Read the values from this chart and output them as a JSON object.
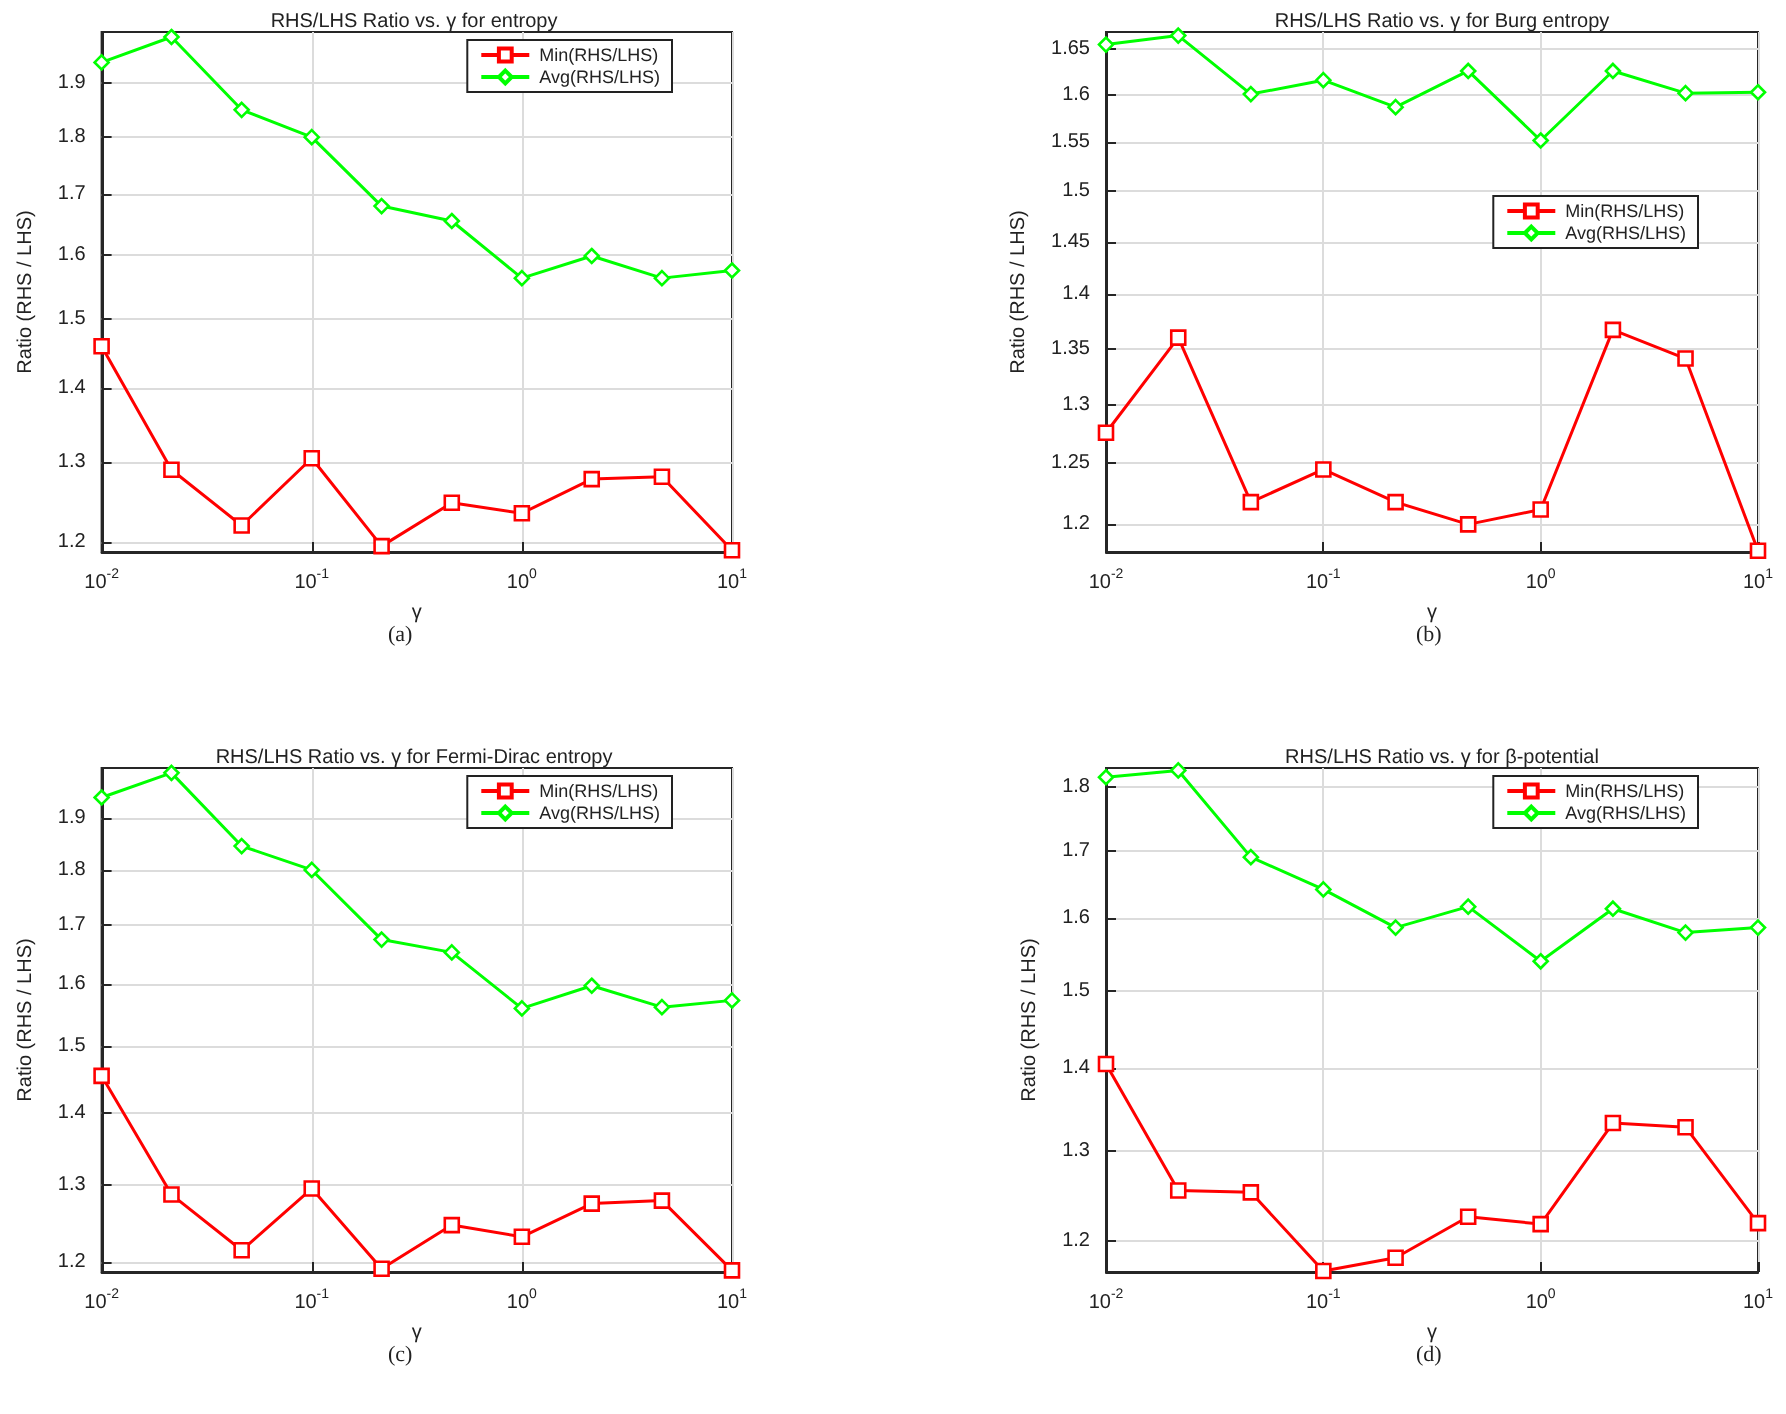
{
  "chart_data": [
    {
      "type": "line",
      "title": "RHS/LHS Ratio vs. γ for entropy",
      "xlabel": "γ",
      "ylabel": "Ratio (RHS / LHS)",
      "annotations": [
        "(a)"
      ],
      "log": "xy",
      "grid": true,
      "legend": "top right",
      "x": [
        0.01,
        0.0215,
        0.0464,
        0.1,
        0.215,
        0.464,
        1,
        2.15,
        4.64,
        10
      ],
      "xlim": [
        0.01,
        10
      ],
      "xticks": [
        {
          "value": 0.01,
          "label": "10$^{-2}$"
        },
        {
          "value": 0.1,
          "label": "10$^{-1}$"
        },
        {
          "value": 1,
          "label": "10$^{0}$"
        },
        {
          "value": 10,
          "label": "10$^{1}$"
        }
      ],
      "ylim": [
        1.188,
        2.0
      ],
      "yticks": [
        1.2,
        1.3,
        1.4,
        1.5,
        1.6,
        1.7,
        1.8,
        1.9
      ],
      "series": [
        {
          "name": "Min(RHS/LHS)",
          "color": "#ff0000",
          "marker": "square",
          "values": [
            1.46,
            1.29,
            1.22,
            1.305,
            1.195,
            1.248,
            1.235,
            1.278,
            1.281,
            1.19
          ]
        },
        {
          "name": "Avg(RHS/LHS)",
          "color": "#00ff00",
          "marker": "diamond",
          "values": [
            1.94,
            1.99,
            1.85,
            1.8,
            1.68,
            1.655,
            1.563,
            1.598,
            1.563,
            1.575
          ]
        }
      ]
    },
    {
      "type": "line",
      "title": "RHS/LHS Ratio vs. γ for Burg entropy",
      "xlabel": "γ",
      "ylabel": "Ratio (RHS / LHS)",
      "annotations": [
        "(b)"
      ],
      "log": "xy",
      "grid": true,
      "legend": "right",
      "x": [
        0.01,
        0.0215,
        0.0464,
        0.1,
        0.215,
        0.464,
        1,
        2.15,
        4.64,
        10
      ],
      "xlim": [
        0.01,
        10
      ],
      "xticks": [
        {
          "value": 0.01,
          "label": "10$^{-2}$"
        },
        {
          "value": 0.1,
          "label": "10$^{-1}$"
        },
        {
          "value": 1,
          "label": "10$^{0}$"
        },
        {
          "value": 10,
          "label": "10$^{1}$"
        }
      ],
      "ylim": [
        1.178,
        1.669
      ],
      "yticks": [
        1.2,
        1.25,
        1.3,
        1.35,
        1.4,
        1.45,
        1.5,
        1.55,
        1.6,
        1.65
      ],
      "series": [
        {
          "name": "Min(RHS/LHS)",
          "color": "#ff0000",
          "marker": "square",
          "values": [
            1.276,
            1.36,
            1.218,
            1.245,
            1.218,
            1.2,
            1.212,
            1.367,
            1.341,
            1.179
          ]
        },
        {
          "name": "Avg(RHS/LHS)",
          "color": "#00ff00",
          "marker": "diamond",
          "values": [
            1.655,
            1.665,
            1.601,
            1.616,
            1.587,
            1.626,
            1.552,
            1.626,
            1.602,
            1.603
          ]
        }
      ]
    },
    {
      "type": "line",
      "title": "RHS/LHS Ratio vs. γ for Fermi-Dirac entropy",
      "xlabel": "γ",
      "ylabel": "Ratio (RHS / LHS)",
      "annotations": [
        "(c)"
      ],
      "log": "xy",
      "grid": true,
      "legend": "top right",
      "x": [
        0.01,
        0.0215,
        0.0464,
        0.1,
        0.215,
        0.464,
        1,
        2.15,
        4.64,
        10
      ],
      "xlim": [
        0.01,
        10
      ],
      "xticks": [
        {
          "value": 0.01,
          "label": "10$^{-2}$"
        },
        {
          "value": 0.1,
          "label": "10$^{-1}$"
        },
        {
          "value": 1,
          "label": "10$^{0}$"
        },
        {
          "value": 10,
          "label": "10$^{1}$"
        }
      ],
      "ylim": [
        1.188,
        2.0
      ],
      "yticks": [
        1.2,
        1.3,
        1.4,
        1.5,
        1.6,
        1.7,
        1.8,
        1.9
      ],
      "series": [
        {
          "name": "Min(RHS/LHS)",
          "color": "#ff0000",
          "marker": "square",
          "values": [
            1.455,
            1.287,
            1.215,
            1.295,
            1.192,
            1.247,
            1.232,
            1.275,
            1.279,
            1.19
          ]
        },
        {
          "name": "Avg(RHS/LHS)",
          "color": "#00ff00",
          "marker": "diamond",
          "values": [
            1.94,
            1.99,
            1.845,
            1.8,
            1.675,
            1.653,
            1.56,
            1.597,
            1.562,
            1.573
          ]
        }
      ]
    },
    {
      "type": "line",
      "title": "RHS/LHS Ratio vs. γ for β-potential",
      "xlabel": "γ",
      "ylabel": "Ratio (RHS / LHS)",
      "annotations": [
        "(d)"
      ],
      "log": "xy",
      "grid": true,
      "legend": "top right",
      "x": [
        0.01,
        0.0215,
        0.0464,
        0.1,
        0.215,
        0.464,
        1,
        2.15,
        4.64,
        10
      ],
      "xlim": [
        0.01,
        10
      ],
      "xticks": [
        {
          "value": 0.01,
          "label": "10$^{-2}$"
        },
        {
          "value": 0.1,
          "label": "10$^{-1}$"
        },
        {
          "value": 1,
          "label": "10$^{0}$"
        },
        {
          "value": 10,
          "label": "10$^{1}$"
        }
      ],
      "ylim": [
        1.167,
        1.83
      ],
      "yticks": [
        1.2,
        1.3,
        1.4,
        1.5,
        1.6,
        1.7,
        1.8
      ],
      "series": [
        {
          "name": "Min(RHS/LHS)",
          "color": "#ff0000",
          "marker": "square",
          "values": [
            1.405,
            1.255,
            1.253,
            1.168,
            1.182,
            1.226,
            1.218,
            1.333,
            1.328,
            1.219
          ]
        },
        {
          "name": "Avg(RHS/LHS)",
          "color": "#00ff00",
          "marker": "diamond",
          "values": [
            1.815,
            1.826,
            1.69,
            1.642,
            1.587,
            1.617,
            1.54,
            1.614,
            1.58,
            1.587
          ]
        }
      ]
    }
  ]
}
